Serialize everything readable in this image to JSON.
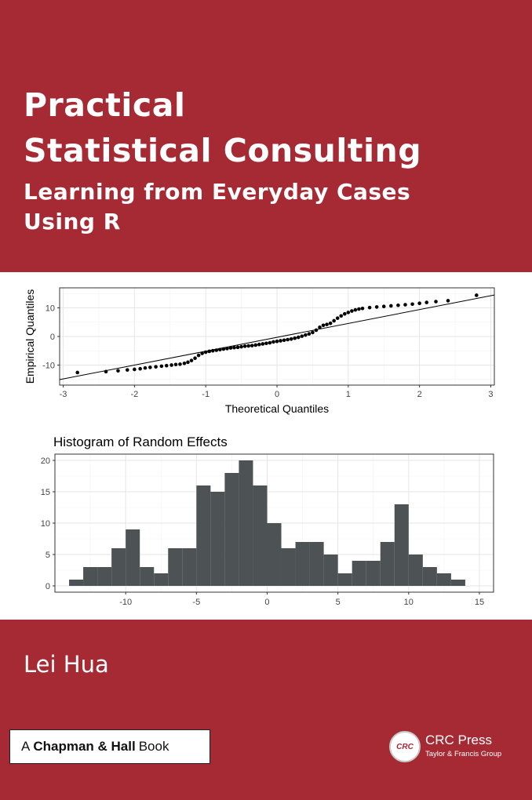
{
  "cover": {
    "title_line1": "Practical",
    "title_line2": "Statistical Consulting",
    "subtitle_line1": "Learning from Everyday Cases",
    "subtitle_line2": "Using R",
    "author": "Lei Hua",
    "series_prefix": "A",
    "series_name": "Chapman & Hall",
    "series_suffix": "Book",
    "publisher_name": "CRC Press",
    "publisher_sub": "Taylor & Francis Group",
    "publisher_logo_text": "CRC",
    "colors": {
      "brand_red": "#a62a34",
      "bar_fill": "#4d5254",
      "grid": "#ebebeb"
    }
  },
  "chart_data": [
    {
      "type": "scatter",
      "title": "",
      "xlabel": "Theoretical Quantiles",
      "ylabel": "Empirical Quantiles",
      "xlim": [
        -3.05,
        3.05
      ],
      "ylim": [
        -17,
        17
      ],
      "xticks": [
        "-3",
        "-2",
        "-1",
        "0",
        "1",
        "2",
        "3"
      ],
      "yticks": [
        "-10",
        "0",
        "10"
      ],
      "grid": true,
      "reference_line": {
        "intercept": -0.3,
        "slope": 4.85
      },
      "points": [
        [
          -2.8,
          -12.6
        ],
        [
          -2.4,
          -12.3
        ],
        [
          -2.23,
          -12.0
        ],
        [
          -2.1,
          -11.7
        ],
        [
          -2.0,
          -11.5
        ],
        [
          -1.92,
          -11.3
        ],
        [
          -1.85,
          -11.0
        ],
        [
          -1.78,
          -10.8
        ],
        [
          -1.7,
          -10.6
        ],
        [
          -1.62,
          -10.4
        ],
        [
          -1.55,
          -10.2
        ],
        [
          -1.48,
          -10.0
        ],
        [
          -1.42,
          -9.8
        ],
        [
          -1.36,
          -9.7
        ],
        [
          -1.3,
          -9.4
        ],
        [
          -1.25,
          -9.0
        ],
        [
          -1.2,
          -8.4
        ],
        [
          -1.15,
          -7.6
        ],
        [
          -1.1,
          -6.6
        ],
        [
          -1.05,
          -5.9
        ],
        [
          -1.0,
          -5.5
        ],
        [
          -0.95,
          -5.2
        ],
        [
          -0.9,
          -5.0
        ],
        [
          -0.85,
          -4.8
        ],
        [
          -0.8,
          -4.6
        ],
        [
          -0.75,
          -4.4
        ],
        [
          -0.7,
          -4.2
        ],
        [
          -0.65,
          -4.0
        ],
        [
          -0.6,
          -3.9
        ],
        [
          -0.55,
          -3.8
        ],
        [
          -0.5,
          -3.6
        ],
        [
          -0.45,
          -3.4
        ],
        [
          -0.4,
          -3.3
        ],
        [
          -0.35,
          -3.2
        ],
        [
          -0.3,
          -3.0
        ],
        [
          -0.25,
          -2.8
        ],
        [
          -0.2,
          -2.6
        ],
        [
          -0.15,
          -2.4
        ],
        [
          -0.1,
          -2.2
        ],
        [
          -0.05,
          -1.9
        ],
        [
          0.0,
          -1.7
        ],
        [
          0.05,
          -1.5
        ],
        [
          0.1,
          -1.3
        ],
        [
          0.15,
          -1.1
        ],
        [
          0.2,
          -0.9
        ],
        [
          0.25,
          -0.6
        ],
        [
          0.3,
          -0.3
        ],
        [
          0.35,
          0.1
        ],
        [
          0.4,
          0.5
        ],
        [
          0.45,
          0.9
        ],
        [
          0.5,
          1.4
        ],
        [
          0.55,
          2.2
        ],
        [
          0.6,
          3.2
        ],
        [
          0.65,
          3.9
        ],
        [
          0.7,
          4.2
        ],
        [
          0.75,
          4.6
        ],
        [
          0.8,
          5.5
        ],
        [
          0.85,
          6.4
        ],
        [
          0.9,
          7.2
        ],
        [
          0.95,
          7.9
        ],
        [
          1.0,
          8.4
        ],
        [
          1.05,
          8.9
        ],
        [
          1.1,
          9.3
        ],
        [
          1.15,
          9.6
        ],
        [
          1.2,
          9.8
        ],
        [
          1.3,
          10.1
        ],
        [
          1.4,
          10.3
        ],
        [
          1.5,
          10.5
        ],
        [
          1.6,
          10.7
        ],
        [
          1.7,
          10.9
        ],
        [
          1.8,
          11.1
        ],
        [
          1.9,
          11.3
        ],
        [
          2.0,
          11.6
        ],
        [
          2.1,
          11.9
        ],
        [
          2.23,
          12.2
        ],
        [
          2.4,
          12.5
        ],
        [
          2.8,
          14.4
        ]
      ]
    },
    {
      "type": "bar",
      "title": "Histogram of Random Effects",
      "xlabel": "",
      "ylabel": "",
      "xlim": [
        -15,
        16
      ],
      "ylim": [
        -1,
        21
      ],
      "xticks": [
        "-10",
        "-5",
        "0",
        "5",
        "10",
        "15"
      ],
      "yticks": [
        "0",
        "5",
        "10",
        "15",
        "20"
      ],
      "grid": true,
      "bin_width": 1,
      "bins": [
        [
          -14,
          1
        ],
        [
          -13,
          3
        ],
        [
          -12,
          3
        ],
        [
          -11,
          6
        ],
        [
          -10,
          9
        ],
        [
          -9,
          3
        ],
        [
          -8,
          2
        ],
        [
          -7,
          6
        ],
        [
          -6,
          6
        ],
        [
          -5,
          16
        ],
        [
          -4,
          15
        ],
        [
          -3,
          18
        ],
        [
          -2,
          20
        ],
        [
          -1,
          16
        ],
        [
          0,
          10
        ],
        [
          1,
          6
        ],
        [
          2,
          7
        ],
        [
          3,
          7
        ],
        [
          4,
          5
        ],
        [
          5,
          2
        ],
        [
          6,
          4
        ],
        [
          7,
          4
        ],
        [
          8,
          7
        ],
        [
          9,
          13
        ],
        [
          10,
          5
        ],
        [
          11,
          3
        ],
        [
          12,
          2
        ],
        [
          13,
          1
        ]
      ]
    }
  ]
}
